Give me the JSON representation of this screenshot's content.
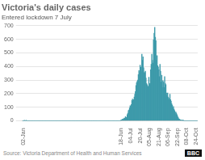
{
  "chart_data": {
    "type": "bar",
    "title": "Victoria's daily cases",
    "subtitle": "Entered lockdown 7 July",
    "annotations": [
      "Source: Victoria Department of Health and Human Services",
      "BBC"
    ],
    "color": "#3d9aaa",
    "grid": true,
    "ylim": [
      0,
      700
    ],
    "yticks": [
      0,
      100,
      200,
      300,
      400,
      500,
      600,
      700
    ],
    "categories": [
      null,
      "02-Jan",
      null,
      null,
      null,
      null,
      null,
      null,
      null,
      null,
      null,
      null,
      null,
      null,
      null,
      null,
      null,
      null,
      null,
      null,
      null,
      null,
      null,
      null,
      null,
      null,
      null,
      null,
      null,
      null,
      null,
      null,
      null,
      null,
      null,
      null,
      null,
      null,
      null,
      null,
      null,
      null,
      null,
      null,
      null,
      null,
      null,
      null,
      null,
      null,
      null,
      null,
      null,
      null,
      null,
      null,
      null,
      null,
      null,
      null,
      null,
      null,
      null,
      null,
      null,
      null,
      null,
      null,
      null,
      null,
      null,
      null,
      null,
      null,
      null,
      null,
      null,
      null,
      null,
      null,
      null,
      null,
      null,
      null,
      null,
      null,
      null,
      null,
      null,
      null,
      null,
      null,
      null,
      null,
      null,
      null,
      null,
      null,
      null,
      null,
      null,
      null,
      null,
      null,
      null,
      null,
      null,
      null,
      null,
      null,
      null,
      null,
      null,
      null,
      null,
      null,
      null,
      null,
      null,
      null,
      null,
      null,
      null,
      null,
      null,
      null,
      null,
      null,
      null,
      null,
      null,
      null,
      null,
      null,
      null,
      null,
      null,
      null,
      null,
      null,
      null,
      null,
      null,
      null,
      null,
      null,
      null,
      null,
      null,
      null,
      null,
      null,
      null,
      null,
      null,
      null,
      null,
      null,
      null,
      null,
      null,
      null,
      null,
      null,
      null,
      null,
      null,
      null,
      null,
      "18-Jun",
      null,
      null,
      null,
      null,
      null,
      null,
      null,
      null,
      null,
      null,
      null,
      null,
      null,
      null,
      null,
      "04-Jul",
      null,
      null,
      null,
      null,
      null,
      null,
      null,
      null,
      null,
      null,
      null,
      null,
      null,
      null,
      null,
      "20-Jul",
      null,
      null,
      null,
      null,
      null,
      null,
      null,
      null,
      null,
      null,
      null,
      null,
      null,
      null,
      null,
      "05-Aug",
      null,
      null,
      null,
      null,
      null,
      null,
      null,
      null,
      null,
      null,
      null,
      null,
      null,
      null,
      null,
      "21-Aug",
      null,
      null,
      null,
      null,
      null,
      null,
      null,
      null,
      null,
      null,
      null,
      null,
      null,
      null,
      null,
      "06-Sep",
      null,
      null,
      null,
      null,
      null,
      null,
      null,
      null,
      null,
      null,
      null,
      null,
      null,
      null,
      null,
      "22-Sep",
      null,
      null,
      null,
      null,
      null,
      null,
      null,
      null,
      null,
      null,
      null,
      null,
      null,
      null,
      null,
      "08-Oct",
      null,
      null,
      null,
      null,
      null,
      null,
      null,
      null,
      null,
      null,
      null,
      null,
      null,
      null,
      null,
      "24-Oct",
      null,
      null
    ],
    "values": [
      0,
      0,
      0,
      1,
      0,
      0,
      1,
      0,
      0,
      0,
      0,
      0,
      0,
      0,
      0,
      0,
      0,
      0,
      0,
      0,
      0,
      0,
      0,
      0,
      0,
      0,
      0,
      0,
      0,
      0,
      0,
      0,
      0,
      0,
      0,
      0,
      0,
      0,
      0,
      0,
      0,
      0,
      0,
      0,
      0,
      0,
      0,
      0,
      0,
      0,
      0,
      0,
      0,
      0,
      0,
      0,
      0,
      0,
      0,
      0,
      0,
      0,
      0,
      0,
      0,
      0,
      0,
      0,
      0,
      0,
      0,
      0,
      0,
      0,
      0,
      0,
      0,
      0,
      0,
      0,
      0,
      0,
      0,
      0,
      0,
      0,
      0,
      0,
      0,
      0,
      0,
      0,
      0,
      0,
      0,
      0,
      0,
      0,
      0,
      0,
      0,
      0,
      0,
      0,
      0,
      0,
      0,
      0,
      0,
      0,
      0,
      0,
      0,
      0,
      0,
      0,
      0,
      0,
      0,
      0,
      0,
      0,
      0,
      0,
      0,
      0,
      0,
      0,
      0,
      0,
      0,
      0,
      0,
      0,
      0,
      0,
      0,
      0,
      0,
      0,
      0,
      0,
      0,
      0,
      0,
      0,
      0,
      0,
      0,
      0,
      0,
      0,
      0,
      0,
      0,
      0,
      0,
      0,
      0,
      0,
      0,
      0,
      0,
      0,
      0,
      0,
      0,
      0,
      2,
      5,
      8,
      12,
      10,
      15,
      20,
      18,
      30,
      25,
      20,
      45,
      55,
      75,
      80,
      95,
      110,
      100,
      120,
      150,
      160,
      145,
      155,
      175,
      195,
      215,
      260,
      280,
      290,
      300,
      340,
      370,
      355,
      410,
      395,
      360,
      490,
      445,
      470,
      390,
      355,
      355,
      365,
      315,
      275,
      265,
      255,
      250,
      320,
      275,
      265,
      375,
      415,
      490,
      445,
      425,
      595,
      645,
      688,
      615,
      590,
      445,
      480,
      405,
      395,
      375,
      325,
      415,
      365,
      285,
      335,
      245,
      295,
      285,
      245,
      325,
      275,
      265,
      205,
      185,
      205,
      175,
      165,
      155,
      195,
      155,
      145,
      125,
      115,
      95,
      105,
      85,
      75,
      45,
      65,
      55,
      45,
      35,
      25,
      15,
      12,
      8,
      6,
      4,
      3,
      2,
      1,
      1,
      0,
      0,
      0,
      0,
      0,
      0,
      0,
      0,
      0,
      0,
      0,
      0,
      0,
      0,
      0,
      0,
      0,
      0,
      0,
      0,
      0,
      0,
      0,
      0
    ]
  }
}
